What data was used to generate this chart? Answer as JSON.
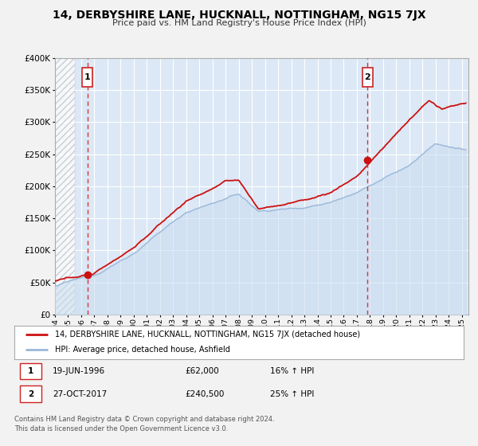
{
  "title": "14, DERBYSHIRE LANE, HUCKNALL, NOTTINGHAM, NG15 7JX",
  "subtitle": "Price paid vs. HM Land Registry's House Price Index (HPI)",
  "bg_color": "#f2f2f2",
  "plot_bg_color": "#dce8f5",
  "grid_color": "#ffffff",
  "hatch_color": "#cccccc",
  "hpi_color": "#9ab8d8",
  "hpi_fill_color": "#c8dcf0",
  "price_color": "#cc1111",
  "dashed_line_color": "#dd3333",
  "sale1_date_x": 1996.46,
  "sale1_price": 62000,
  "sale1_label": "1",
  "sale2_date_x": 2017.82,
  "sale2_price": 240500,
  "sale2_label": "2",
  "legend_line1": "14, DERBYSHIRE LANE, HUCKNALL, NOTTINGHAM, NG15 7JX (detached house)",
  "legend_line2": "HPI: Average price, detached house, Ashfield",
  "table_row1": [
    "1",
    "19-JUN-1996",
    "£62,000",
    "16% ↑ HPI"
  ],
  "table_row2": [
    "2",
    "27-OCT-2017",
    "£240,500",
    "25% ↑ HPI"
  ],
  "footnote": "Contains HM Land Registry data © Crown copyright and database right 2024.\nThis data is licensed under the Open Government Licence v3.0.",
  "ylim": [
    0,
    400000
  ],
  "xlim_start": 1994.0,
  "xlim_end": 2025.5,
  "yticks": [
    0,
    50000,
    100000,
    150000,
    200000,
    250000,
    300000,
    350000,
    400000
  ]
}
